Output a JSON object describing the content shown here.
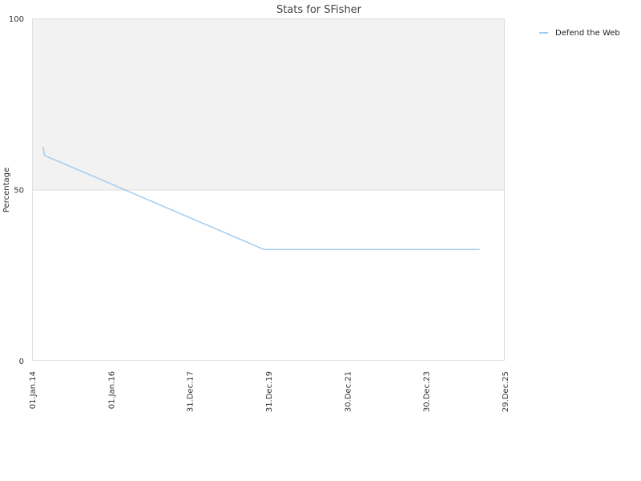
{
  "chart_data": {
    "type": "line",
    "title": "Stats for SFisher",
    "xlabel": "",
    "ylabel": "Percentage",
    "ylim": [
      0,
      100
    ],
    "y_ticks": [
      "0",
      "50",
      "100"
    ],
    "x_ticks": [
      "01.Jan.14",
      "01.Jan.16",
      "31.Dec.17",
      "31.Dec.19",
      "30.Dec.21",
      "30.Dec.23",
      "29.Dec.25"
    ],
    "x_tick_dates": [
      "2014-01-01",
      "2016-01-01",
      "2017-12-31",
      "2019-12-31",
      "2021-12-30",
      "2023-12-30",
      "2025-12-29"
    ],
    "xlim": [
      "2014-01-01",
      "2025-12-29"
    ],
    "shaded_band": [
      50,
      100
    ],
    "grid": false,
    "legend": "top-right",
    "series": [
      {
        "name": "Defend the Web",
        "color": "#a3ccf0",
        "points": [
          {
            "x": "2014-04-15",
            "y": 62.5
          },
          {
            "x": "2014-04-25",
            "y": 60
          },
          {
            "x": "2019-11-20",
            "y": 32.5
          },
          {
            "x": "2025-05-10",
            "y": 32.5
          }
        ]
      }
    ]
  }
}
